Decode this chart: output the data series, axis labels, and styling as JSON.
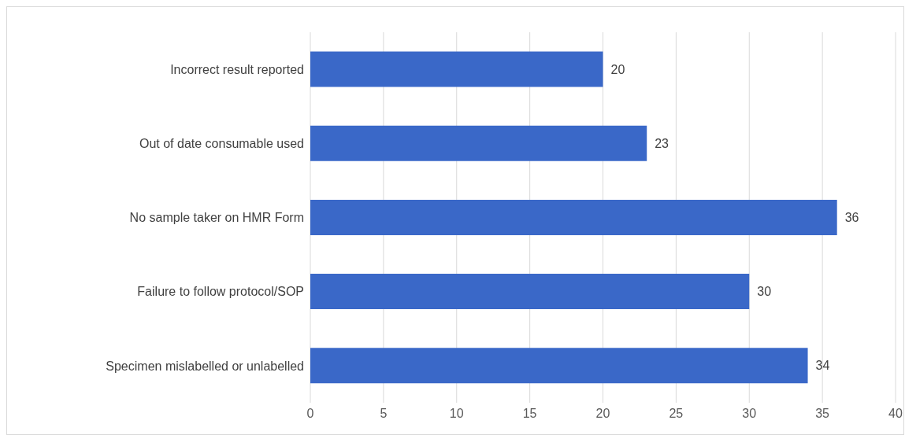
{
  "chart_data": {
    "type": "bar",
    "orientation": "horizontal",
    "categories": [
      "Incorrect result reported",
      "Out of date consumable used",
      "No sample taker on HMR Form",
      "Failure to follow protocol/SOP",
      "Specimen mislabelled or unlabelled"
    ],
    "values": [
      20,
      23,
      36,
      30,
      34
    ],
    "color": "#3a68c8",
    "xlim": [
      0,
      40
    ],
    "xticks": [
      0,
      5,
      10,
      15,
      20,
      25,
      30,
      35,
      40
    ],
    "grid": "x",
    "data_labels": true
  }
}
